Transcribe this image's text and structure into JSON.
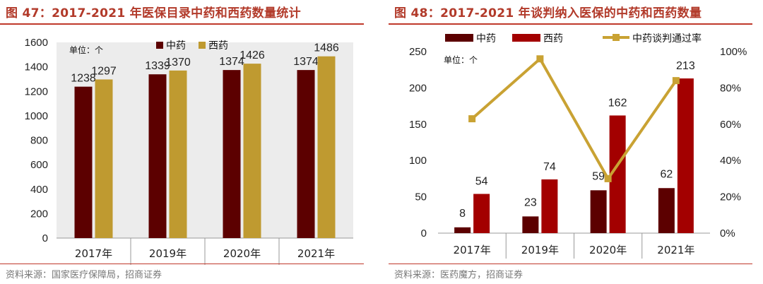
{
  "colors": {
    "accent": "#b23a2a",
    "tcm": "#5c0000",
    "western_left": "#bf9a30",
    "western_right": "#a30000",
    "line": "#c9a233",
    "plot_bg_left": "#ececec"
  },
  "chart_data": [
    {
      "type": "bar",
      "title": "图 47：2017-2021 年医保目录中药和西药数量统计",
      "unit_label": "单位：个",
      "source": "资料来源：国家医疗保障局，招商证券",
      "categories": [
        "2017年",
        "2019年",
        "2020年",
        "2021年"
      ],
      "series": [
        {
          "name": "中药",
          "values": [
            1238,
            1339,
            1374,
            1374
          ]
        },
        {
          "name": "西药",
          "values": [
            1297,
            1370,
            1426,
            1486
          ]
        }
      ],
      "ylim": [
        0,
        1600
      ],
      "yticks": [
        "0",
        "200",
        "400",
        "600",
        "800",
        "1000",
        "1200",
        "1400",
        "1600"
      ],
      "legend": "top"
    },
    {
      "type": "bar",
      "title": "图 48：2017-2021 年谈判纳入医保的中药和西药数量",
      "unit_label": "单位：个",
      "source": "资料来源：医药魔方，招商证券",
      "categories": [
        "2017年",
        "2019年",
        "2020年",
        "2021年"
      ],
      "series": [
        {
          "name": "中药",
          "values": [
            8,
            23,
            59,
            62
          ]
        },
        {
          "name": "西药",
          "values": [
            54,
            74,
            162,
            213
          ]
        },
        {
          "name": "中药谈判通过率",
          "type": "line",
          "axis": "right",
          "values": [
            63,
            96,
            30,
            84
          ]
        }
      ],
      "ylim": [
        0,
        250
      ],
      "y2lim": [
        0,
        100
      ],
      "yticks": [
        "0",
        "50",
        "100",
        "150",
        "200",
        "250"
      ],
      "y2ticks": [
        "0%",
        "20%",
        "40%",
        "60%",
        "80%",
        "100%"
      ],
      "legend": "top"
    }
  ]
}
